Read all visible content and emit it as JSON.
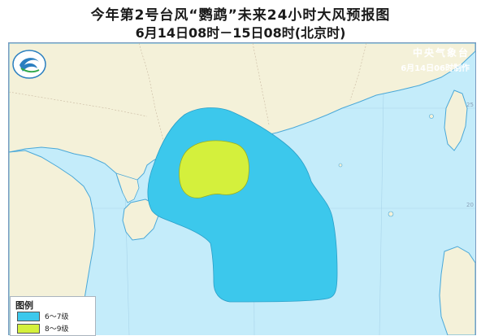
{
  "title": {
    "line1": "今年第2号台风“鹦鹉”未来24小时大风预报图",
    "line2": "6月14日08时－15日08时(北京时)"
  },
  "agency": {
    "name": "中央气象台",
    "issued": "6月14日06时制作"
  },
  "legend": {
    "title": "图例",
    "items": [
      {
        "label": "6～7级",
        "color": "#3cc8ec"
      },
      {
        "label": "8～9级",
        "color": "#d4f03c"
      }
    ]
  },
  "grid_labels": [
    "25",
    "20"
  ],
  "colors": {
    "sea": "#c4ecfa",
    "land": "#f4f1d9",
    "coast": "#4aa8d8",
    "gale_6_7": "#3cc8ec",
    "gale_8_9": "#d4f03c"
  }
}
